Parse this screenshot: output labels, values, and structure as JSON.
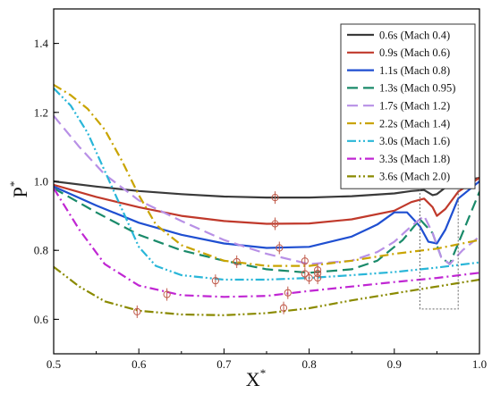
{
  "chart_data": {
    "type": "line",
    "title": "",
    "xlabel": "X",
    "xlabel_sup": "*",
    "ylabel": "P",
    "ylabel_sup": "*",
    "xlim": [
      0.5,
      1.0
    ],
    "ylim": [
      0.5,
      1.5
    ],
    "xticks": [
      0.5,
      0.6,
      0.7,
      0.8,
      0.9,
      1.0
    ],
    "xtick_labels": [
      "0.5",
      "0.6",
      "0.7",
      "0.8",
      "0.9",
      "1.0"
    ],
    "yticks": [
      0.6,
      0.8,
      1.0,
      1.2,
      1.4
    ],
    "ytick_labels": [
      "0.6",
      "0.8",
      "1.0",
      "1.2",
      "1.4"
    ],
    "grid": false,
    "legend_position": "top-right",
    "series": [
      {
        "name": "0.6s",
        "mach": "(Mach 0.4)",
        "color": "#3a3a3a",
        "dash": "solid",
        "points": [
          [
            0.5,
            1.0
          ],
          [
            0.55,
            0.985
          ],
          [
            0.6,
            0.972
          ],
          [
            0.65,
            0.963
          ],
          [
            0.7,
            0.956
          ],
          [
            0.75,
            0.953
          ],
          [
            0.8,
            0.953
          ],
          [
            0.85,
            0.957
          ],
          [
            0.9,
            0.965
          ],
          [
            0.92,
            0.972
          ],
          [
            0.935,
            0.975
          ],
          [
            0.945,
            0.96
          ],
          [
            0.95,
            0.963
          ],
          [
            0.96,
            0.982
          ],
          [
            0.975,
            1.0
          ],
          [
            1.0,
            1.01
          ]
        ],
        "markers": [
          [
            0.76,
            0.953
          ]
        ]
      },
      {
        "name": "0.9s",
        "mach": "(Mach 0.6)",
        "color": "#c0392b",
        "dash": "solid",
        "points": [
          [
            0.5,
            0.99
          ],
          [
            0.55,
            0.955
          ],
          [
            0.6,
            0.925
          ],
          [
            0.65,
            0.9
          ],
          [
            0.7,
            0.885
          ],
          [
            0.75,
            0.877
          ],
          [
            0.8,
            0.878
          ],
          [
            0.85,
            0.89
          ],
          [
            0.9,
            0.915
          ],
          [
            0.92,
            0.94
          ],
          [
            0.935,
            0.95
          ],
          [
            0.945,
            0.925
          ],
          [
            0.95,
            0.9
          ],
          [
            0.96,
            0.92
          ],
          [
            0.975,
            0.97
          ],
          [
            1.0,
            1.01
          ]
        ],
        "markers": [
          [
            0.76,
            0.877
          ]
        ]
      },
      {
        "name": "1.1s",
        "mach": "(Mach 0.8)",
        "color": "#1f4fd1",
        "dash": "solid",
        "points": [
          [
            0.5,
            0.985
          ],
          [
            0.55,
            0.93
          ],
          [
            0.6,
            0.88
          ],
          [
            0.65,
            0.845
          ],
          [
            0.7,
            0.82
          ],
          [
            0.75,
            0.807
          ],
          [
            0.8,
            0.81
          ],
          [
            0.85,
            0.84
          ],
          [
            0.88,
            0.875
          ],
          [
            0.9,
            0.91
          ],
          [
            0.915,
            0.91
          ],
          [
            0.93,
            0.87
          ],
          [
            0.94,
            0.825
          ],
          [
            0.95,
            0.82
          ],
          [
            0.96,
            0.86
          ],
          [
            0.975,
            0.95
          ],
          [
            1.0,
            1.0
          ]
        ],
        "markers": [
          [
            0.765,
            0.807
          ]
        ]
      },
      {
        "name": "1.3s",
        "mach": "(Mach 0.95)",
        "color": "#1a8a6a",
        "dash": "12,6",
        "points": [
          [
            0.5,
            0.98
          ],
          [
            0.55,
            0.91
          ],
          [
            0.6,
            0.845
          ],
          [
            0.65,
            0.8
          ],
          [
            0.7,
            0.77
          ],
          [
            0.75,
            0.745
          ],
          [
            0.8,
            0.735
          ],
          [
            0.85,
            0.745
          ],
          [
            0.88,
            0.77
          ],
          [
            0.91,
            0.83
          ],
          [
            0.93,
            0.89
          ],
          [
            0.945,
            0.85
          ],
          [
            0.955,
            0.78
          ],
          [
            0.965,
            0.76
          ],
          [
            0.98,
            0.85
          ],
          [
            1.0,
            0.97
          ]
        ],
        "markers": [
          [
            0.81,
            0.733
          ]
        ]
      },
      {
        "name": "1.7s",
        "mach": "(Mach 1.2)",
        "color": "#b890e6",
        "dash": "12,6",
        "points": [
          [
            0.5,
            1.19
          ],
          [
            0.53,
            1.1
          ],
          [
            0.56,
            1.02
          ],
          [
            0.6,
            0.945
          ],
          [
            0.65,
            0.885
          ],
          [
            0.7,
            0.83
          ],
          [
            0.75,
            0.79
          ],
          [
            0.8,
            0.76
          ],
          [
            0.85,
            0.77
          ],
          [
            0.88,
            0.795
          ],
          [
            0.9,
            0.825
          ],
          [
            0.92,
            0.87
          ],
          [
            0.935,
            0.9
          ],
          [
            0.945,
            0.85
          ],
          [
            0.955,
            0.78
          ],
          [
            0.965,
            0.76
          ],
          [
            0.98,
            0.8
          ],
          [
            1.0,
            0.84
          ]
        ],
        "markers": [
          [
            0.81,
            0.743
          ]
        ]
      },
      {
        "name": "2.2s",
        "mach": "(Mach 1.4)",
        "color": "#c9a400",
        "dash": "10,4,2,4",
        "points": [
          [
            0.5,
            1.28
          ],
          [
            0.52,
            1.25
          ],
          [
            0.54,
            1.21
          ],
          [
            0.56,
            1.15
          ],
          [
            0.58,
            1.06
          ],
          [
            0.6,
            0.96
          ],
          [
            0.62,
            0.875
          ],
          [
            0.65,
            0.815
          ],
          [
            0.7,
            0.77
          ],
          [
            0.75,
            0.755
          ],
          [
            0.8,
            0.755
          ],
          [
            0.85,
            0.77
          ],
          [
            0.9,
            0.79
          ],
          [
            0.95,
            0.805
          ],
          [
            1.0,
            0.83
          ]
        ],
        "markers": [
          [
            0.795,
            0.769
          ]
        ]
      },
      {
        "name": "3.0s",
        "mach": "(Mach 1.6)",
        "color": "#29b6d8",
        "dash": "10,3,2,3,2,3",
        "points": [
          [
            0.5,
            1.27
          ],
          [
            0.52,
            1.22
          ],
          [
            0.54,
            1.14
          ],
          [
            0.56,
            1.03
          ],
          [
            0.58,
            0.92
          ],
          [
            0.6,
            0.81
          ],
          [
            0.62,
            0.755
          ],
          [
            0.65,
            0.728
          ],
          [
            0.7,
            0.715
          ],
          [
            0.75,
            0.715
          ],
          [
            0.8,
            0.72
          ],
          [
            0.85,
            0.728
          ],
          [
            0.9,
            0.737
          ],
          [
            0.95,
            0.75
          ],
          [
            1.0,
            0.765
          ]
        ],
        "markers": [
          [
            0.8,
            0.72
          ]
        ]
      },
      {
        "name": "3.3s",
        "mach": "(Mach 1.8)",
        "color": "#c026d3",
        "dash": "10,4,2,4",
        "points": [
          [
            0.5,
            0.98
          ],
          [
            0.53,
            0.86
          ],
          [
            0.56,
            0.76
          ],
          [
            0.6,
            0.698
          ],
          [
            0.65,
            0.67
          ],
          [
            0.7,
            0.665
          ],
          [
            0.75,
            0.668
          ],
          [
            0.8,
            0.682
          ],
          [
            0.85,
            0.695
          ],
          [
            0.9,
            0.708
          ],
          [
            0.95,
            0.72
          ],
          [
            1.0,
            0.735
          ]
        ],
        "markers": [
          [
            0.633,
            0.672
          ],
          [
            0.775,
            0.677
          ]
        ]
      },
      {
        "name": "3.6s",
        "mach": "(Mach 2.0)",
        "color": "#8a8a00",
        "dash": "10,3,2,3,2,3",
        "points": [
          [
            0.5,
            0.752
          ],
          [
            0.53,
            0.695
          ],
          [
            0.56,
            0.652
          ],
          [
            0.6,
            0.625
          ],
          [
            0.65,
            0.614
          ],
          [
            0.7,
            0.612
          ],
          [
            0.75,
            0.618
          ],
          [
            0.8,
            0.632
          ],
          [
            0.85,
            0.655
          ],
          [
            0.9,
            0.675
          ],
          [
            0.95,
            0.695
          ],
          [
            1.0,
            0.715
          ]
        ],
        "markers": [
          [
            0.598,
            0.622
          ],
          [
            0.77,
            0.633
          ]
        ]
      }
    ],
    "extra_markers": [
      [
        0.69,
        0.712
      ],
      [
        0.715,
        0.767
      ],
      [
        0.795,
        0.732
      ],
      [
        0.81,
        0.72
      ]
    ],
    "marker_color": "#c05a4a",
    "highlight_box": {
      "x": [
        0.93,
        0.975
      ],
      "y": [
        0.63,
        1.02
      ],
      "color": "#666666"
    }
  }
}
